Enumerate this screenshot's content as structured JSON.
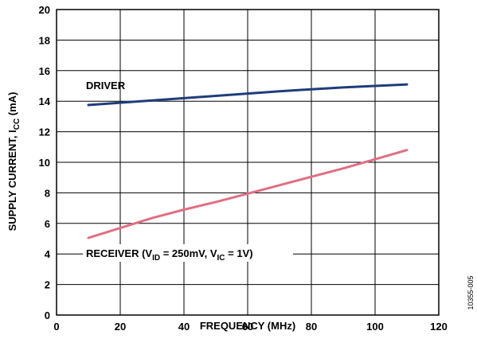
{
  "chart_data": {
    "type": "line",
    "xlabel": "FREQUENCY (MHz)",
    "ylabel": {
      "main": "SUPPLY CURRENT, I",
      "sub": "CC",
      "unit": " (mA)"
    },
    "xlim": [
      0,
      120
    ],
    "ylim": [
      0,
      20
    ],
    "x_ticks": [
      0,
      20,
      40,
      60,
      80,
      100,
      120
    ],
    "y_ticks": [
      0,
      2,
      4,
      6,
      8,
      10,
      12,
      14,
      16,
      18,
      20
    ],
    "grid": true,
    "series": [
      {
        "name": "DRIVER",
        "color": "#1f3d7a",
        "x": [
          10,
          20,
          30,
          40,
          50,
          60,
          70,
          80,
          90,
          100,
          110
        ],
        "y": [
          13.75,
          13.9,
          14.05,
          14.2,
          14.35,
          14.5,
          14.65,
          14.78,
          14.9,
          15.0,
          15.1
        ]
      },
      {
        "name": "RECEIVER",
        "color": "#e06f82",
        "x": [
          10,
          20,
          30,
          40,
          50,
          60,
          70,
          80,
          90,
          100,
          110
        ],
        "y": [
          5.05,
          5.7,
          6.35,
          6.9,
          7.4,
          7.95,
          8.5,
          9.05,
          9.6,
          10.2,
          10.8
        ]
      }
    ],
    "annotations": {
      "driver_label": "DRIVER",
      "receiver_label": {
        "p1": "RECEIVER (V",
        "s1": "ID",
        "p2": " = 250mV, V",
        "s2": "IC",
        "p3": " = 1V)"
      }
    }
  },
  "figure_id": "10355-005"
}
